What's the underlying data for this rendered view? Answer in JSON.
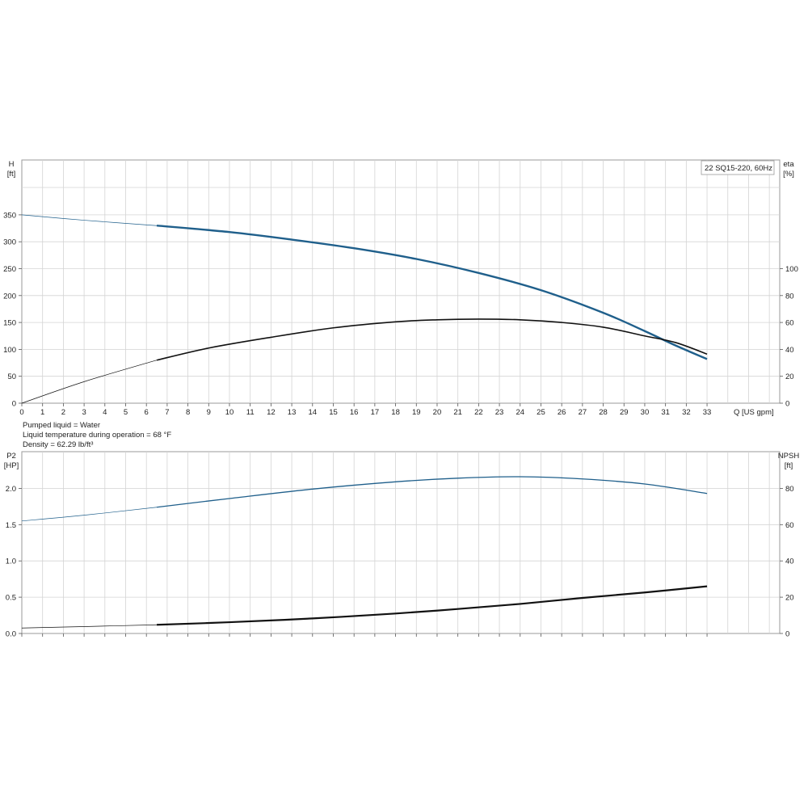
{
  "chart_data": [
    {
      "type": "line",
      "legend": "22 SQ15-220, 60Hz",
      "xlabel": "Q [US gpm]",
      "xlim": [
        0,
        33
      ],
      "x_ticks": [
        "0",
        "1",
        "2",
        "3",
        "4",
        "5",
        "6",
        "7",
        "8",
        "9",
        "10",
        "11",
        "12",
        "13",
        "14",
        "15",
        "16",
        "17",
        "18",
        "19",
        "20",
        "21",
        "22",
        "23",
        "24",
        "25",
        "26",
        "27",
        "28",
        "29",
        "30",
        "31",
        "32",
        "33"
      ],
      "y_left": {
        "label_line1": "H",
        "label_line2": "[ft]",
        "range": [
          0,
          350
        ],
        "ticks": [
          "0",
          "50",
          "100",
          "150",
          "200",
          "250",
          "300",
          "350"
        ]
      },
      "y_right": {
        "label_line1": "eta",
        "label_line2": "[%]",
        "range": [
          0,
          100
        ],
        "ticks": [
          "0",
          "20",
          "40",
          "60",
          "80",
          "100"
        ]
      },
      "series": [
        {
          "axis": "left",
          "color": "#1f5f8b",
          "x": [
            0,
            3,
            6.5,
            10,
            13,
            16,
            19,
            22,
            25,
            28,
            30,
            31.5,
            33
          ],
          "y": [
            350,
            340,
            330,
            318,
            304,
            288,
            268,
            242,
            210,
            168,
            134,
            107,
            82
          ]
        },
        {
          "axis": "right",
          "color": "#111111",
          "x": [
            0,
            3,
            6.5,
            9,
            12,
            15,
            18,
            20,
            22,
            24,
            26,
            28,
            30,
            31.5,
            33
          ],
          "y": [
            0,
            16,
            32,
            41,
            49,
            56,
            60.5,
            62,
            62.5,
            62,
            60,
            56.5,
            50,
            45,
            36.5
          ]
        }
      ],
      "grid": true
    },
    {
      "type": "line",
      "xlim": [
        0,
        33
      ],
      "y_left": {
        "label_line1": "P2",
        "label_line2": "[HP]",
        "range": [
          0,
          2.2
        ],
        "ticks": [
          "0.0",
          "0.5",
          "1.0",
          "1.5",
          "2.0"
        ]
      },
      "y_right": {
        "label_line1": "NPSH",
        "label_line2": "[ft]",
        "range": [
          0,
          88
        ],
        "ticks": [
          "0",
          "20",
          "40",
          "60",
          "80"
        ]
      },
      "series": [
        {
          "axis": "left",
          "color": "#1f5f8b",
          "x": [
            0,
            3,
            6.5,
            10,
            14,
            18,
            21,
            24,
            27,
            30,
            33
          ],
          "y": [
            1.55,
            1.63,
            1.74,
            1.86,
            1.99,
            2.09,
            2.14,
            2.16,
            2.13,
            2.06,
            1.93
          ]
        },
        {
          "axis": "right",
          "color": "#111111",
          "x": [
            0,
            3,
            6.5,
            10,
            14,
            18,
            21,
            24,
            27,
            30,
            33
          ],
          "y": [
            3,
            3.8,
            4.8,
            6.2,
            8.3,
            11,
            13.5,
            16.3,
            19.6,
            22.6,
            26
          ]
        }
      ],
      "grid": true
    }
  ],
  "info": {
    "line1": "Pumped liquid = Water",
    "line2": "Liquid temperature during operation = 68 °F",
    "line3": "Density = 62.29 lb/ft³"
  }
}
